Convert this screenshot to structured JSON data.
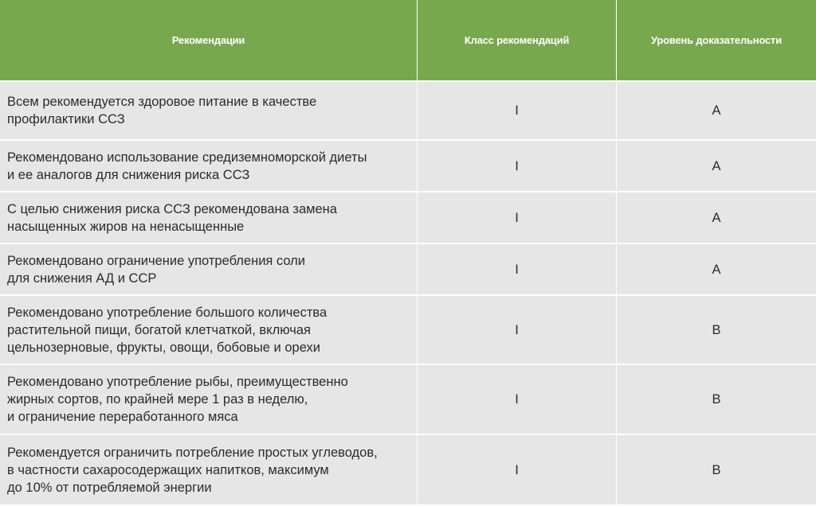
{
  "table": {
    "headers": [
      "Рекомендации",
      "Класс рекомендаций",
      "Уровень доказательности"
    ],
    "rows": [
      {
        "text": "Всем рекомендуется здоровое питание в качестве\nпрофилактики ССЗ",
        "class": "I",
        "level": "A"
      },
      {
        "text": "Рекомендовано использование средиземноморской диеты\nи ее аналогов для снижения риска ССЗ",
        "class": "I",
        "level": "A"
      },
      {
        "text": "С целью снижения риска ССЗ рекомендована замена\nнасыщенных жиров на ненасыщенные",
        "class": "I",
        "level": "A"
      },
      {
        "text": "Рекомендовано ограничение употребления соли\nдля снижения АД и ССР",
        "class": "I",
        "level": "A"
      },
      {
        "text": "Рекомендовано употребление большого количества\nрастительной пищи, богатой клетчаткой, включая\nцельнозерновые, фрукты, овощи, бобовые и орехи",
        "class": "I",
        "level": "B"
      },
      {
        "text": "Рекомендовано употребление рыбы, преимущественно\nжирных сортов, по крайней мере 1 раз в неделю,\nи ограничение переработанного мяса",
        "class": "I",
        "level": "B"
      },
      {
        "text": "Рекомендуется ограничить потребление простых углеводов,\nв частности сахаросодержащих напитков, максимум\nдо 10% от потребляемой энергии",
        "class": "I",
        "level": "B"
      }
    ]
  },
  "colors": {
    "header_bg": "#77a84d",
    "row_bg": "#e6e6e6",
    "text": "#2b2b2b"
  }
}
